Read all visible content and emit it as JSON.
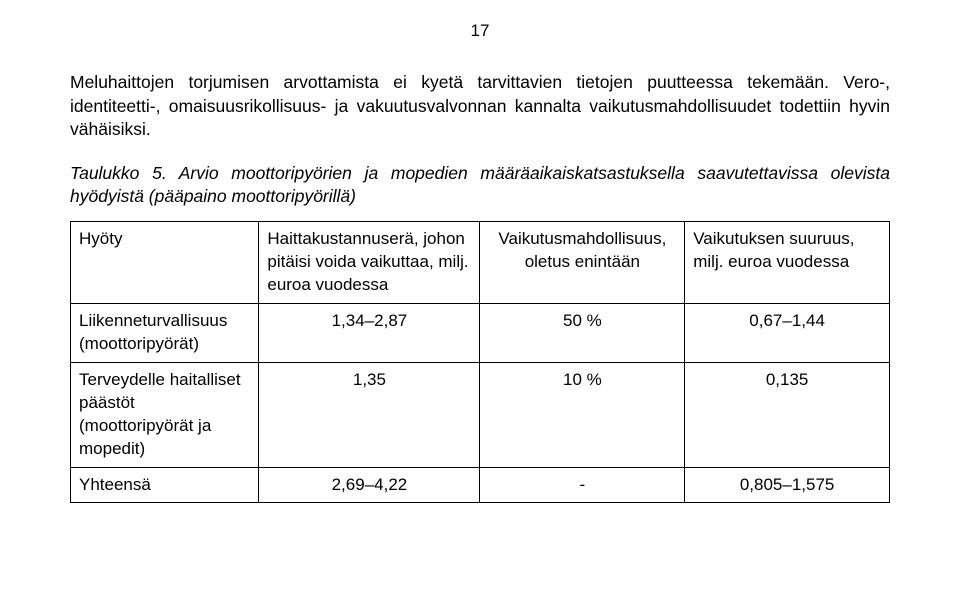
{
  "page_number": "17",
  "paragraph": "Meluhaittojen torjumisen arvottamista ei kyetä tarvittavien tietojen puutteessa tekemään. Vero-, identiteetti-, omaisuusrikollisuus- ja vakuutusvalvonnan kannalta vaikutusmahdollisuudet todettiin hyvin vähäisiksi.",
  "table_caption": "Taulukko 5.  Arvio moottoripyörien ja mopedien määräaikaiskatsastuksella saavutettavissa olevista hyödyistä (pääpaino moottoripyörillä)",
  "table": {
    "headers": [
      "Hyöty",
      "Haittakustannuserä, johon pitäisi voida vaikuttaa, milj. euroa vuodessa",
      "Vaikutus­mahdollisuus, oletus enintään",
      "Vaikutuksen suuruus, milj. euroa vuodessa"
    ],
    "rows": [
      {
        "label": "Liikenneturvallisuus (moottoripyörät)",
        "c1": "1,34–2,87",
        "c2": "50 %",
        "c3": "0,67–1,44"
      },
      {
        "label": "Terveydelle haitalliset päästöt (moottoripyörät ja mopedit)",
        "c1": "1,35",
        "c2": "10 %",
        "c3": "0,135"
      },
      {
        "label": "Yhteensä",
        "c1": "2,69–4,22",
        "c2": "-",
        "c3": "0,805–1,575"
      }
    ]
  }
}
